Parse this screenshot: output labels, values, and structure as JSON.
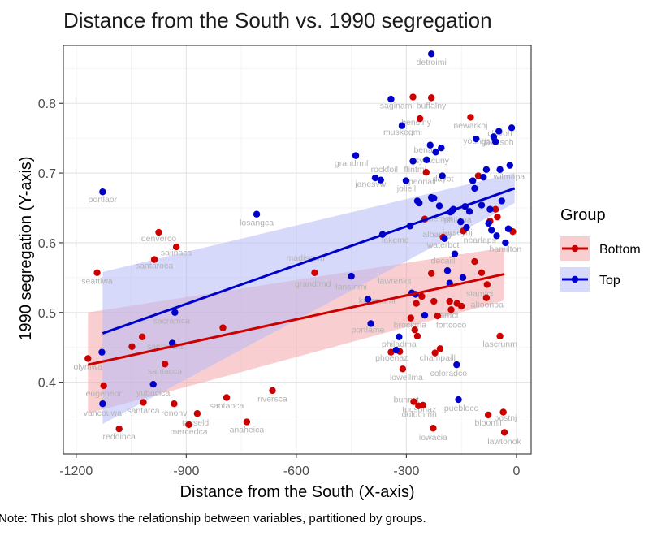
{
  "chart_data": {
    "type": "scatter",
    "title": "Distance from the South vs. 1990 segregation",
    "xlabel": "Distance from the South (X-axis)",
    "ylabel": "1990 segregation (Y-axis)",
    "caption": "Note: This plot shows the relationship between variables, partitioned by groups.",
    "xlim": [
      -1235,
      40
    ],
    "ylim": [
      0.297,
      0.883
    ],
    "x_ticks": [
      -1200,
      -900,
      -600,
      -300,
      0
    ],
    "x_tick_labels": [
      "-1200",
      "-900",
      "-600",
      "-300",
      "0"
    ],
    "y_ticks": [
      0.4,
      0.5,
      0.6,
      0.7,
      0.8
    ],
    "y_tick_labels": [
      "0.4",
      "0.5",
      "0.6",
      "0.7",
      "0.8"
    ],
    "grid": true,
    "legend": {
      "title": "Group",
      "placement": "right",
      "entries": [
        "Bottom",
        "Top"
      ]
    },
    "series": [
      {
        "name": "Bottom",
        "color": "#cc0000",
        "ribbon_color": "#f4a6aa",
        "fit": {
          "x": [
            -1168,
            -33
          ],
          "y": [
            0.425,
            0.555
          ]
        },
        "ribbon": {
          "x": [
            -1168,
            -33
          ],
          "lower": [
            0.355,
            0.517
          ],
          "upper": [
            0.5,
            0.593
          ]
        },
        "points": [
          [
            -1168,
            0.434
          ],
          [
            -1143,
            0.557
          ],
          [
            -1125,
            0.395
          ],
          [
            -1083,
            0.333
          ],
          [
            -1048,
            0.451
          ],
          [
            -1020,
            0.465
          ],
          [
            -1017,
            0.371
          ],
          [
            -987,
            0.576
          ],
          [
            -975,
            0.615
          ],
          [
            -958,
            0.426
          ],
          [
            -933,
            0.369
          ],
          [
            -927,
            0.594
          ],
          [
            -893,
            0.339
          ],
          [
            -870,
            0.355
          ],
          [
            -800,
            0.478
          ],
          [
            -790,
            0.378
          ],
          [
            -735,
            0.343
          ],
          [
            -665,
            0.388
          ],
          [
            -550,
            0.557
          ],
          [
            -342,
            0.443
          ],
          [
            -318,
            0.444
          ],
          [
            -310,
            0.419
          ],
          [
            -288,
            0.492
          ],
          [
            -282,
            0.809
          ],
          [
            -280,
            0.372
          ],
          [
            -277,
            0.475
          ],
          [
            -273,
            0.513
          ],
          [
            -270,
            0.466
          ],
          [
            -267,
            0.366
          ],
          [
            -263,
            0.778
          ],
          [
            -258,
            0.523
          ],
          [
            -255,
            0.367
          ],
          [
            -250,
            0.634
          ],
          [
            -246,
            0.701
          ],
          [
            -232,
            0.808
          ],
          [
            -232,
            0.556
          ],
          [
            -227,
            0.334
          ],
          [
            -225,
            0.516
          ],
          [
            -222,
            0.442
          ],
          [
            -215,
            0.495
          ],
          [
            -208,
            0.448
          ],
          [
            -200,
            0.608
          ],
          [
            -182,
            0.516
          ],
          [
            -178,
            0.504
          ],
          [
            -162,
            0.513
          ],
          [
            -150,
            0.509
          ],
          [
            -145,
            0.617
          ],
          [
            -125,
            0.78
          ],
          [
            -114,
            0.573
          ],
          [
            -104,
            0.696
          ],
          [
            -95,
            0.557
          ],
          [
            -82,
            0.521
          ],
          [
            -80,
            0.54
          ],
          [
            -77,
            0.353
          ],
          [
            -72,
            0.631
          ],
          [
            -57,
            0.648
          ],
          [
            -52,
            0.637
          ],
          [
            -45,
            0.466
          ],
          [
            -36,
            0.357
          ],
          [
            -33,
            0.328
          ],
          [
            -10,
            0.616
          ]
        ]
      },
      {
        "name": "Top",
        "color": "#0000cc",
        "ribbon_color": "#b7b9f5",
        "fit": {
          "x": [
            -1128,
            -5
          ],
          "y": [
            0.47,
            0.678
          ]
        },
        "ribbon": {
          "x": [
            -1128,
            -5
          ],
          "lower": [
            0.34,
            0.657
          ],
          "upper": [
            0.558,
            0.7
          ]
        },
        "points": [
          [
            -1128,
            0.673
          ],
          [
            -1130,
            0.443
          ],
          [
            -1128,
            0.369
          ],
          [
            -990,
            0.397
          ],
          [
            -938,
            0.456
          ],
          [
            -931,
            0.5
          ],
          [
            -708,
            0.641
          ],
          [
            -450,
            0.552
          ],
          [
            -438,
            0.725
          ],
          [
            -405,
            0.519
          ],
          [
            -397,
            0.484
          ],
          [
            -385,
            0.693
          ],
          [
            -370,
            0.69
          ],
          [
            -365,
            0.612
          ],
          [
            -342,
            0.806
          ],
          [
            -328,
            0.446
          ],
          [
            -320,
            0.465
          ],
          [
            -312,
            0.768
          ],
          [
            -301,
            0.689
          ],
          [
            -290,
            0.624
          ],
          [
            -285,
            0.528
          ],
          [
            -282,
            0.717
          ],
          [
            -275,
            0.526
          ],
          [
            -270,
            0.66
          ],
          [
            -265,
            0.657
          ],
          [
            -250,
            0.496
          ],
          [
            -245,
            0.719
          ],
          [
            -235,
            0.74
          ],
          [
            -232,
            0.665
          ],
          [
            -230,
            0.663
          ],
          [
            -225,
            0.664
          ],
          [
            -220,
            0.73
          ],
          [
            -210,
            0.653
          ],
          [
            -205,
            0.736
          ],
          [
            -202,
            0.696
          ],
          [
            -196,
            0.606
          ],
          [
            -188,
            0.56
          ],
          [
            -182,
            0.542
          ],
          [
            -180,
            0.644
          ],
          [
            -176,
            0.646
          ],
          [
            -172,
            0.648
          ],
          [
            -168,
            0.584
          ],
          [
            -163,
            0.425
          ],
          [
            -158,
            0.375
          ],
          [
            -152,
            0.63
          ],
          [
            -146,
            0.55
          ],
          [
            -140,
            0.652
          ],
          [
            -136,
            0.622
          ],
          [
            -128,
            0.645
          ],
          [
            -119,
            0.689
          ],
          [
            -114,
            0.678
          ],
          [
            -110,
            0.749
          ],
          [
            -95,
            0.654
          ],
          [
            -90,
            0.694
          ],
          [
            -82,
            0.705
          ],
          [
            -76,
            0.628
          ],
          [
            -72,
            0.648
          ],
          [
            -68,
            0.618
          ],
          [
            -62,
            0.752
          ],
          [
            -57,
            0.745
          ],
          [
            -54,
            0.61
          ],
          [
            -48,
            0.76
          ],
          [
            -45,
            0.705
          ],
          [
            -40,
            0.66
          ],
          [
            -30,
            0.6
          ],
          [
            -22,
            0.62
          ],
          [
            -18,
            0.711
          ],
          [
            -13,
            0.765
          ],
          [
            -232,
            0.871
          ]
        ]
      }
    ],
    "point_labels": [
      {
        "text": "detroimi",
        "x": -232,
        "y": 0.855
      },
      {
        "text": "saginami buffalny",
        "x": -282,
        "y": 0.793
      },
      {
        "text": "bensfny",
        "x": -273,
        "y": 0.769
      },
      {
        "text": "muskegmi",
        "x": -310,
        "y": 0.755
      },
      {
        "text": "newarknj",
        "x": -125,
        "y": 0.764
      },
      {
        "text": "youngsoh",
        "x": -95,
        "y": 0.742
      },
      {
        "text": "clevoh",
        "x": -45,
        "y": 0.753
      },
      {
        "text": "gaddsoh",
        "x": -52,
        "y": 0.74
      },
      {
        "text": "benapl",
        "x": -245,
        "y": 0.729
      },
      {
        "text": "syracuny",
        "x": -230,
        "y": 0.714
      },
      {
        "text": "grandrml",
        "x": -450,
        "y": 0.71
      },
      {
        "text": "rockfoil",
        "x": -360,
        "y": 0.701
      },
      {
        "text": "flintmi",
        "x": -276,
        "y": 0.701
      },
      {
        "text": "dayot",
        "x": -200,
        "y": 0.688
      },
      {
        "text": "peoriail",
        "x": -257,
        "y": 0.684
      },
      {
        "text": "janesvwi",
        "x": -395,
        "y": 0.68
      },
      {
        "text": "jolieil",
        "x": -300,
        "y": 0.674
      },
      {
        "text": "wilmapa",
        "x": -20,
        "y": 0.691
      },
      {
        "text": "portlaor",
        "x": -1128,
        "y": 0.658
      },
      {
        "text": "losangca",
        "x": -708,
        "y": 0.625
      },
      {
        "text": "salemor",
        "x": -215,
        "y": 0.631
      },
      {
        "text": "philapa",
        "x": -160,
        "y": 0.629
      },
      {
        "text": "jerseynj",
        "x": -160,
        "y": 0.611
      },
      {
        "text": "albanny",
        "x": -215,
        "y": 0.608
      },
      {
        "text": "lakemd",
        "x": -330,
        "y": 0.6
      },
      {
        "text": "nearlaps",
        "x": -100,
        "y": 0.6
      },
      {
        "text": "hamilton",
        "x": -30,
        "y": 0.587
      },
      {
        "text": "waterbct",
        "x": -200,
        "y": 0.593
      },
      {
        "text": "denverco",
        "x": -975,
        "y": 0.602
      },
      {
        "text": "salinaca",
        "x": -927,
        "y": 0.582
      },
      {
        "text": "santaroca",
        "x": -987,
        "y": 0.563
      },
      {
        "text": "madisown",
        "x": -575,
        "y": 0.574
      },
      {
        "text": "decaill",
        "x": -200,
        "y": 0.57
      },
      {
        "text": "lansinmi",
        "x": -450,
        "y": 0.533
      },
      {
        "text": "lawrenks",
        "x": -332,
        "y": 0.541
      },
      {
        "text": "grandfmd",
        "x": -555,
        "y": 0.537
      },
      {
        "text": "seattlwa",
        "x": -1143,
        "y": 0.541
      },
      {
        "text": "kalamami",
        "x": -380,
        "y": 0.513
      },
      {
        "text": "stamfct",
        "x": -100,
        "y": 0.523
      },
      {
        "text": "altoonpa",
        "x": -80,
        "y": 0.507
      },
      {
        "text": "hartfct",
        "x": -190,
        "y": 0.492
      },
      {
        "text": "brockma",
        "x": -290,
        "y": 0.478
      },
      {
        "text": "fortcoco",
        "x": -178,
        "y": 0.478
      },
      {
        "text": "portlame",
        "x": -405,
        "y": 0.471
      },
      {
        "text": "lascrunm",
        "x": -45,
        "y": 0.451
      },
      {
        "text": "sacramca",
        "x": -940,
        "y": 0.484
      },
      {
        "text": "santacwa",
        "x": -958,
        "y": 0.447
      },
      {
        "text": "philadma",
        "x": -320,
        "y": 0.451
      },
      {
        "text": "phoenaz",
        "x": -340,
        "y": 0.431
      },
      {
        "text": "champaill",
        "x": -215,
        "y": 0.431
      },
      {
        "text": "santacca",
        "x": -958,
        "y": 0.412
      },
      {
        "text": "olymwa",
        "x": -1168,
        "y": 0.418
      },
      {
        "text": "lowellma",
        "x": -300,
        "y": 0.403
      },
      {
        "text": "coloradco",
        "x": -185,
        "y": 0.409
      },
      {
        "text": "eugeneor",
        "x": -1125,
        "y": 0.38
      },
      {
        "text": "yubacica",
        "x": -990,
        "y": 0.381
      },
      {
        "text": "riversca",
        "x": -665,
        "y": 0.372
      },
      {
        "text": "bunnvt",
        "x": -300,
        "y": 0.371
      },
      {
        "text": "santabca",
        "x": -790,
        "y": 0.362
      },
      {
        "text": "santarca",
        "x": -1017,
        "y": 0.355
      },
      {
        "text": "renonv",
        "x": -933,
        "y": 0.352
      },
      {
        "text": "vancouwa",
        "x": -1128,
        "y": 0.352
      },
      {
        "text": "tucsonaz",
        "x": -265,
        "y": 0.357
      },
      {
        "text": "duluthmn",
        "x": -265,
        "y": 0.35
      },
      {
        "text": "puebloco",
        "x": -150,
        "y": 0.359
      },
      {
        "text": "bloomil",
        "x": -77,
        "y": 0.338
      },
      {
        "text": "mercedca",
        "x": -893,
        "y": 0.325
      },
      {
        "text": "tasseld",
        "x": -875,
        "y": 0.338
      },
      {
        "text": "anaheica",
        "x": -735,
        "y": 0.328
      },
      {
        "text": "reddinca",
        "x": -1083,
        "y": 0.318
      },
      {
        "text": "iowacia",
        "x": -227,
        "y": 0.317
      },
      {
        "text": "lawtonok",
        "x": -33,
        "y": 0.311
      },
      {
        "text": "bostnj",
        "x": -30,
        "y": 0.345
      }
    ]
  }
}
